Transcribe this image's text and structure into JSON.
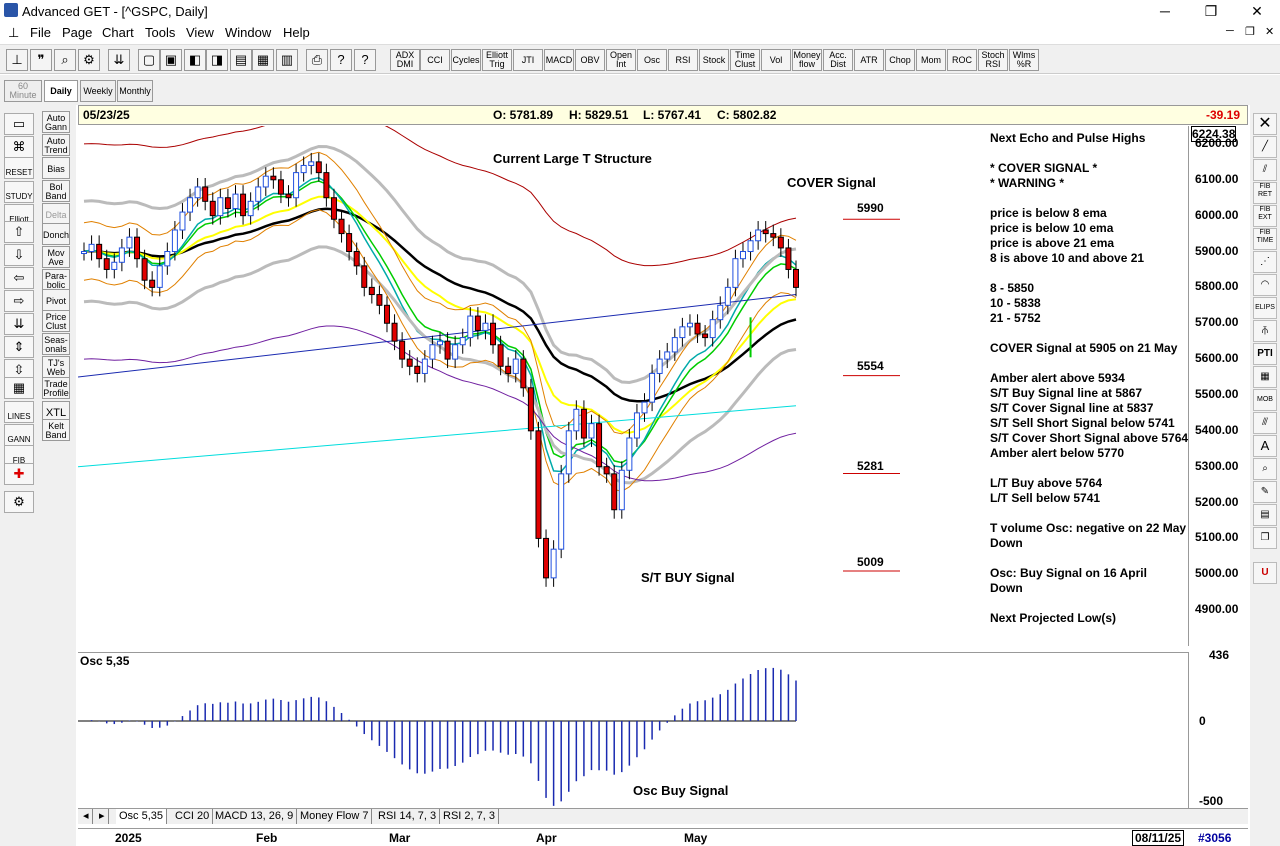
{
  "window": {
    "title": "Advanced GET - [^GSPC, Daily]",
    "min": "─",
    "max": "❐",
    "close": "✕"
  },
  "menu": [
    "File",
    "Page",
    "Chart",
    "Tools",
    "View",
    "Window",
    "Help"
  ],
  "toolbar": {
    "indicators": [
      "ADX DMI",
      "CCI",
      "Cycles",
      "Elliott Trig",
      "JTI",
      "MACD",
      "OBV",
      "Open Int",
      "Osc",
      "RSI",
      "Stock",
      "Time Clust",
      "Vol",
      "Money flow",
      "Acc. Dist",
      "ATR",
      "Chop",
      "Mom",
      "ROC",
      "Stoch RSI",
      "Wlms %R"
    ]
  },
  "periods": {
    "p60": "60 Minute",
    "daily": "Daily",
    "weekly": "Weekly",
    "monthly": "Monthly"
  },
  "left_tools": [
    "Auto Gann",
    "Auto Trend",
    "Bias",
    "Bol Band",
    "Delta",
    "Donch",
    "Mov Ave",
    "Para- bolic",
    "Pivot",
    "Price Clust",
    "Seas- onals",
    "TJ's Web",
    "Trade Profile",
    "XTL",
    "Kelt Band"
  ],
  "left_small": [
    "RESET",
    "STUDY",
    "Elliott",
    "LINES",
    "GANN",
    "FIB"
  ],
  "info": {
    "date": "05/23/25",
    "open": "O: 5781.89",
    "high": "H: 5829.51",
    "low": "L: 5767.41",
    "close": "C: 5802.82",
    "change": "-39.19"
  },
  "chart": {
    "title_annotation": "Current Large T Structure",
    "cover_signal": "COVER Signal",
    "st_buy": "S/T BUY Signal",
    "levels": [
      "5990",
      "5554",
      "5281",
      "5009"
    ],
    "notes": [
      "Next Echo and Pulse Highs",
      "",
      "* COVER SIGNAL *",
      "* WARNING *",
      "",
      "price is below 8 ema",
      "price is below 10 ema",
      "price is above 21 ema",
      "8 is above 10 and above 21",
      "",
      "8  - 5850",
      "10 - 5838",
      "21 - 5752",
      "",
      "COVER Signal at 5905 on 21 May",
      "",
      "Amber alert above 5934",
      "S/T Buy Signal line at 5867",
      "S/T Cover Signal line at 5837",
      "S/T Sell Short Signal below 5741",
      "S/T Cover Short Signal above 5764",
      "Amber alert below 5770",
      "",
      "L/T Buy above 5764",
      "L/T Sell below 5741",
      "",
      "T volume Osc: negative on 22 May",
      "Down",
      "",
      "Osc: Buy Signal on 16 April",
      "Down",
      "",
      "Next Projected Low(s)"
    ],
    "price_scale": [
      "6224.38",
      "6200.00",
      "6100.00",
      "6000.00",
      "5900.00",
      "5800.00",
      "5700.00",
      "5600.00",
      "5500.00",
      "5400.00",
      "5300.00",
      "5200.00",
      "5100.00",
      "5000.00",
      "4900.00"
    ]
  },
  "osc": {
    "label": "Osc 5,35",
    "buy_signal": "Osc Buy Signal",
    "scale": [
      "436",
      "0",
      "-500"
    ]
  },
  "tabs": [
    "Osc 5,35",
    "CCI 20",
    "MACD 13, 26, 9",
    "Money Flow 7",
    "RSI 14, 7, 3",
    "RSI 2, 7, 3"
  ],
  "time_axis": {
    "months": [
      "2025",
      "Feb",
      "Mar",
      "Apr",
      "May"
    ],
    "date": "08/11/25",
    "bar": "#3056"
  },
  "chart_data": {
    "type": "candlestick",
    "ylim": [
      4800,
      6250
    ],
    "close_series": [
      5900,
      5920,
      5880,
      5850,
      5870,
      5910,
      5940,
      5880,
      5820,
      5800,
      5860,
      5900,
      5960,
      6010,
      6050,
      6080,
      6040,
      6000,
      6050,
      6020,
      6060,
      6000,
      6040,
      6080,
      6110,
      6100,
      6060,
      6050,
      6120,
      6140,
      6150,
      6120,
      6050,
      5990,
      5950,
      5900,
      5860,
      5800,
      5780,
      5750,
      5700,
      5650,
      5600,
      5580,
      5560,
      5600,
      5640,
      5650,
      5600,
      5640,
      5660,
      5720,
      5680,
      5700,
      5640,
      5580,
      5560,
      5600,
      5520,
      5400,
      5100,
      4990,
      5070,
      5280,
      5400,
      5460,
      5380,
      5420,
      5300,
      5280,
      5180,
      5290,
      5380,
      5450,
      5480,
      5560,
      5600,
      5620,
      5660,
      5690,
      5700,
      5670,
      5660,
      5710,
      5750,
      5800,
      5880,
      5900,
      5930,
      5960,
      5950,
      5940,
      5910,
      5850,
      5800
    ]
  }
}
